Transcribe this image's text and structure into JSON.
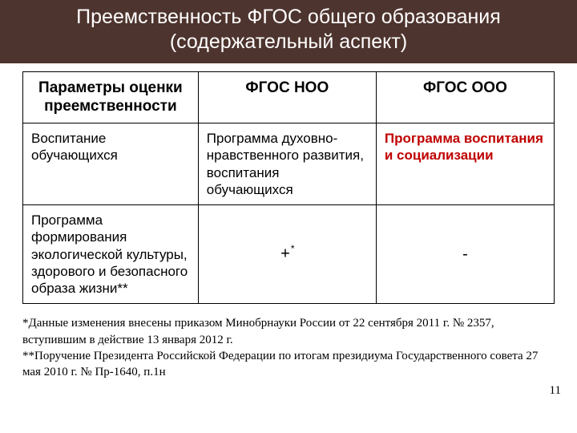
{
  "title": "Преемственность ФГОС общего образования (содержательный аспект)",
  "table": {
    "headers": {
      "param": "Параметры оценки преемственности",
      "col1": "ФГОС НОО",
      "col2": "ФГОС ООО"
    },
    "row1": {
      "param": "Воспитание обучающихся",
      "col1": "Программа духовно-нравственного развития, воспитания обучающихся",
      "col2": "Программа воспитания и социализации"
    },
    "row2": {
      "param": "Программа формирования экологической культуры, здорового и безопасного образа жизни**",
      "col1_main": "+",
      "col1_sup": "*",
      "col2": "-"
    }
  },
  "foot1": "*Данные изменения внесены приказом Минобрнауки России от 22 сентября 2011 г. № 2357, вступившим в действие 13 января 2012 г.",
  "foot2": "**Поручение Президента Российской Федерации по итогам президиума Государственного совета 27 мая 2010 г. № Пр-1640, п.1н",
  "pageNum": "11",
  "colors": {
    "title_bg": "#4e342e",
    "title_fg": "#ffffff",
    "border": "#000000",
    "highlight": "#c00000",
    "background": "#ffffff"
  }
}
